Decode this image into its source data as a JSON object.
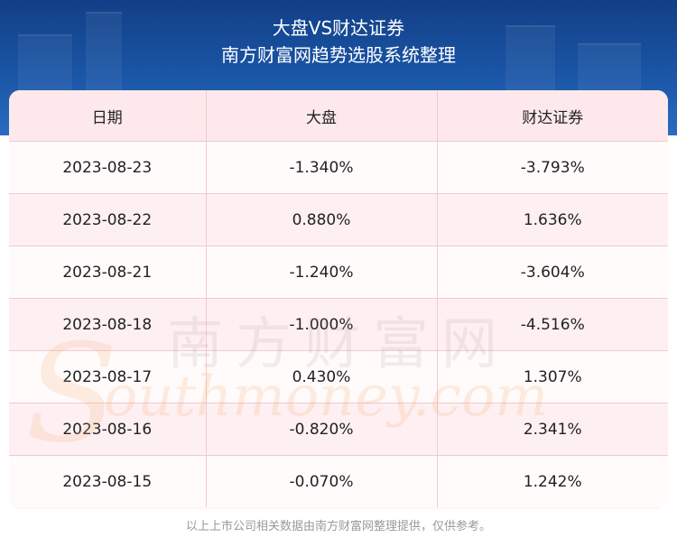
{
  "header": {
    "title": "大盘VS财达证券",
    "subtitle": "南方财富网趋势选股系统整理"
  },
  "table": {
    "columns": [
      "日期",
      "大盘",
      "财达证券"
    ],
    "rows": [
      [
        "2023-08-23",
        "-1.340%",
        "-3.793%"
      ],
      [
        "2023-08-22",
        "0.880%",
        "1.636%"
      ],
      [
        "2023-08-21",
        "-1.240%",
        "-3.604%"
      ],
      [
        "2023-08-18",
        "-1.000%",
        "-4.516%"
      ],
      [
        "2023-08-17",
        "0.430%",
        "1.307%"
      ],
      [
        "2023-08-16",
        "-0.820%",
        "2.341%"
      ],
      [
        "2023-08-15",
        "-0.070%",
        "1.242%"
      ]
    ]
  },
  "watermark": {
    "chinese": "南方财富网",
    "letter": "S",
    "english": "outhmoney.com"
  },
  "footer": {
    "note": "以上上市公司相关数据由南方财富网整理提供，仅供参考。"
  }
}
